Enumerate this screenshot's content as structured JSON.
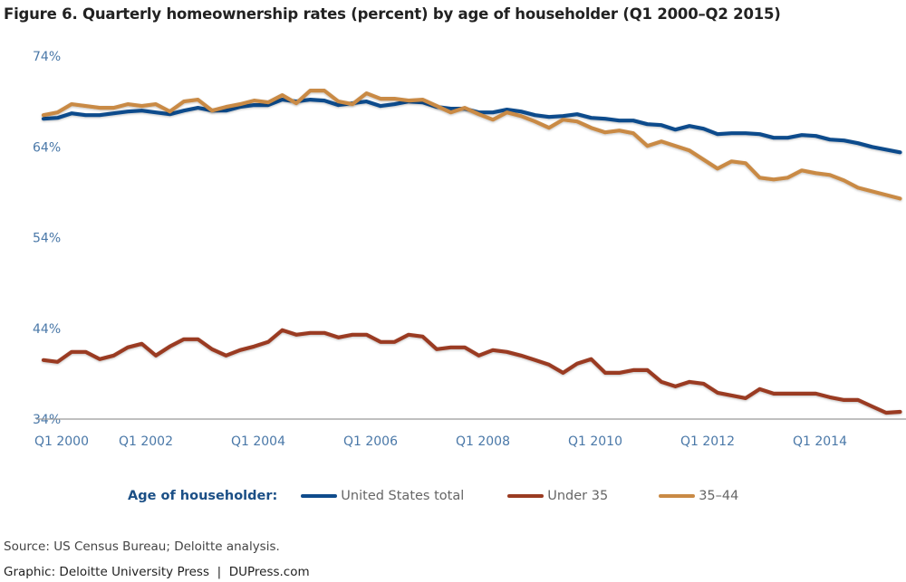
{
  "title": "Figure 6. Quarterly homeownership rates (percent) by age of householder (Q1 2000–Q2 2015)",
  "chart_data": {
    "type": "line",
    "title": "Figure 6. Quarterly homeownership rates (percent) by age of householder (Q1 2000–Q2 2015)",
    "xlabel": "",
    "ylabel": "",
    "x_start": "Q1 2000",
    "x_end": "Q2 2015",
    "frequency": "quarterly",
    "ylim": [
      34,
      74
    ],
    "yticks": [
      34,
      44,
      54,
      64,
      74
    ],
    "ytick_labels": [
      "34%",
      "44%",
      "54%",
      "64%",
      "74%"
    ],
    "xticks": [
      {
        "index": 0,
        "label": "Q1 2000"
      },
      {
        "index": 8,
        "label": "Q1 2002"
      },
      {
        "index": 16,
        "label": "Q1 2004"
      },
      {
        "index": 24,
        "label": "Q1 2006"
      },
      {
        "index": 32,
        "label": "Q1 2008"
      },
      {
        "index": 40,
        "label": "Q1 2010"
      },
      {
        "index": 48,
        "label": "Q1 2012"
      },
      {
        "index": 56,
        "label": "Q1 2014"
      }
    ],
    "grid": false,
    "legend_title": "Age of householder:",
    "legend_position": "bottom",
    "series": [
      {
        "name": "United States total",
        "color": "#0f4c8c",
        "values": [
          67.1,
          67.2,
          67.7,
          67.5,
          67.5,
          67.7,
          67.9,
          68.0,
          67.8,
          67.6,
          68.0,
          68.3,
          68.0,
          68.0,
          68.4,
          68.6,
          68.6,
          69.2,
          69.0,
          69.2,
          69.1,
          68.6,
          68.8,
          69.0,
          68.5,
          68.7,
          69.0,
          68.9,
          68.4,
          68.2,
          68.2,
          67.8,
          67.8,
          68.1,
          67.9,
          67.5,
          67.3,
          67.4,
          67.6,
          67.2,
          67.1,
          66.9,
          66.9,
          66.5,
          66.4,
          65.9,
          66.3,
          66.0,
          65.4,
          65.5,
          65.5,
          65.4,
          65.0,
          65.0,
          65.3,
          65.2,
          64.8,
          64.7,
          64.4,
          64.0,
          63.7,
          63.4
        ]
      },
      {
        "name": "Under 35",
        "color": "#9a3b22",
        "values": [
          40.5,
          40.3,
          41.4,
          41.4,
          40.6,
          41.0,
          41.9,
          42.3,
          41.0,
          42.0,
          42.8,
          42.8,
          41.7,
          41.0,
          41.6,
          42.0,
          42.5,
          43.8,
          43.3,
          43.5,
          43.5,
          43.0,
          43.3,
          43.3,
          42.5,
          42.5,
          43.3,
          43.1,
          41.7,
          41.9,
          41.9,
          41.0,
          41.6,
          41.4,
          41.0,
          40.5,
          40.0,
          39.1,
          40.1,
          40.6,
          39.1,
          39.1,
          39.4,
          39.4,
          38.1,
          37.6,
          38.1,
          37.9,
          36.9,
          36.6,
          36.3,
          37.3,
          36.8,
          36.8,
          36.8,
          36.8,
          36.4,
          36.1,
          36.1,
          35.4,
          34.7,
          34.8
        ]
      },
      {
        "name": "35–44",
        "color": "#c98a45",
        "values": [
          67.5,
          67.8,
          68.7,
          68.5,
          68.3,
          68.3,
          68.7,
          68.5,
          68.7,
          67.9,
          69.0,
          69.2,
          68.0,
          68.4,
          68.7,
          69.1,
          68.9,
          69.7,
          68.8,
          70.2,
          70.2,
          69.0,
          68.7,
          69.9,
          69.3,
          69.3,
          69.1,
          69.2,
          68.5,
          67.8,
          68.3,
          67.6,
          67.0,
          67.8,
          67.4,
          66.8,
          66.1,
          67.0,
          66.8,
          66.1,
          65.6,
          65.8,
          65.5,
          64.1,
          64.6,
          64.1,
          63.6,
          62.6,
          61.6,
          62.4,
          62.2,
          60.6,
          60.4,
          60.6,
          61.4,
          61.1,
          60.9,
          60.3,
          59.5,
          59.1,
          58.7,
          58.3
        ]
      }
    ]
  },
  "source": "Source: US Census Bureau; Deloitte analysis.",
  "credit": "Graphic: Deloitte University Press  |  DUPress.com"
}
